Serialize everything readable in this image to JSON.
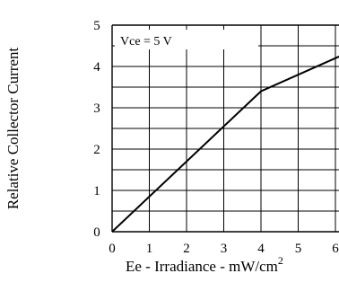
{
  "chart_data": {
    "type": "line",
    "title": "",
    "xlabel": "Ee - Irradiance - mW/cm",
    "xlabel_superscript": "2",
    "ylabel": "Relative Collector  Current",
    "annotation": "Vce =  5 V",
    "x_ticks": [
      0,
      1,
      2,
      3,
      4,
      5,
      6
    ],
    "x_tick_labels": [
      "0",
      "1",
      "2",
      "3",
      "4",
      "5",
      "6"
    ],
    "y_ticks": [
      0,
      1,
      2,
      3,
      4,
      5
    ],
    "y_tick_labels": [
      "0",
      "1",
      "2",
      "3",
      "4",
      "5"
    ],
    "xlim": [
      0,
      6
    ],
    "ylim": [
      0,
      5
    ],
    "grid": true,
    "series": [
      {
        "x": [
          0,
          4,
          6.25
        ],
        "y": [
          0,
          3.4,
          4.3
        ]
      }
    ]
  }
}
